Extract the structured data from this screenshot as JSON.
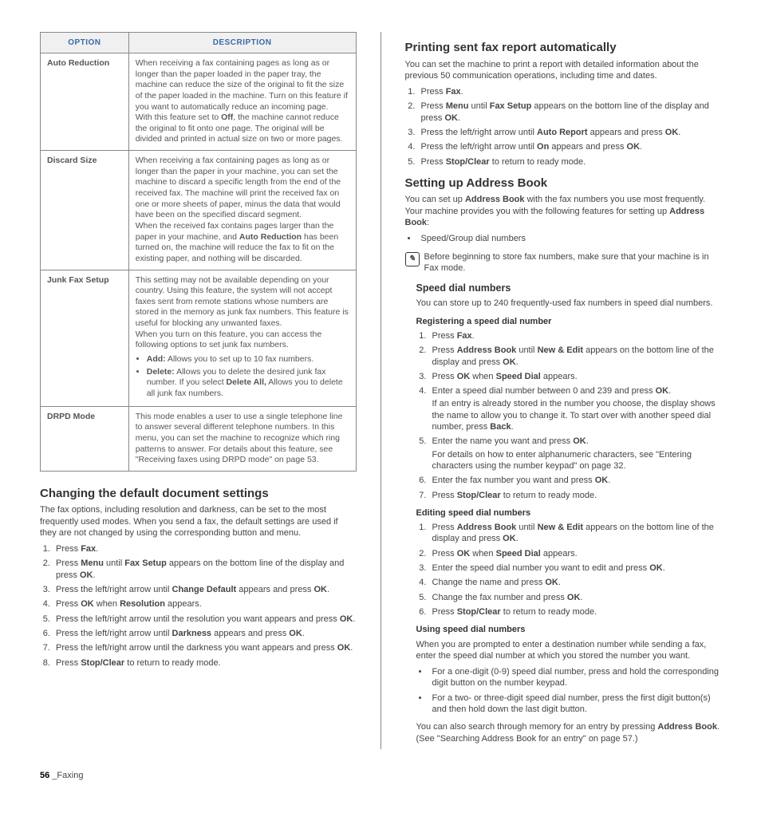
{
  "table": {
    "header_option": "OPTION",
    "header_description": "DESCRIPTION",
    "rows": [
      {
        "name": "Auto Reduction",
        "desc_html": "When receiving a fax containing pages as long as or longer than the paper loaded in the paper tray, the machine can reduce the size of the original to fit the size of the paper loaded in the machine. Turn on this feature if you want to automatically reduce an incoming page.<br>With this feature set to <strong>Off</strong>, the machine cannot reduce the original to fit onto one page. The original will be divided and printed in actual size on two or more pages."
      },
      {
        "name": "Discard Size",
        "desc_html": "When receiving a fax containing pages as long as or longer than the paper in your machine, you can set the machine to discard a specific length from the end of the received fax. The machine will print the received fax on one or more sheets of paper, minus the data that would have been on the specified discard segment.<br>When the received fax contains pages larger than the paper in your machine, and <strong>Auto Reduction</strong> has been turned on, the machine will reduce the fax to fit on the existing paper, and nothing will be discarded."
      },
      {
        "name": "Junk Fax Setup",
        "desc_html": "This setting may not be available depending on your country. Using this feature, the system will not accept faxes sent from remote stations whose numbers are stored in the memory as junk fax numbers. This feature is useful for blocking any unwanted faxes.<br>When you turn on this feature, you can access the following options to set junk fax numbers.<ul><li><strong>Add:</strong> Allows you to set up to 10 fax numbers.</li><li><strong>Delete:</strong> Allows you to delete the desired junk fax number. If you select <strong>Delete All,</strong> Allows you to delete all junk fax numbers.</li></ul>"
      },
      {
        "name": "DRPD Mode",
        "desc_html": "This mode enables a user to use a single telephone line to answer several different telephone numbers. In this menu, you can set the machine to recognize which ring patterns to answer. For details about this feature, see \"Receiving faxes using DRPD mode\" on page 53."
      }
    ]
  },
  "s_changing": {
    "title": "Changing the default document settings",
    "intro": "The fax options, including resolution and darkness, can be set to the most frequently used modes. When you send a fax, the default settings are used if they are not changed by using the corresponding button and menu.",
    "steps": [
      "Press <strong>Fax</strong>.",
      "Press <strong>Menu</strong> until <strong>Fax Setup</strong> appears on the bottom line of the display and press <strong>OK</strong>.",
      "Press the left/right arrow until <strong>Change Default</strong> appears and press <strong>OK</strong>.",
      "Press <strong>OK</strong> when <strong>Resolution</strong> appears.",
      "Press the left/right arrow until the resolution you want appears and press <strong>OK</strong>.",
      "Press the left/right arrow until <strong>Darkness</strong> appears and press <strong>OK</strong>.",
      "Press the left/right arrow until the darkness you want appears and press <strong>OK</strong>.",
      "Press <strong>Stop/Clear</strong> to return to ready mode."
    ]
  },
  "s_printing": {
    "title": "Printing sent fax report automatically",
    "intro": "You can set the machine to print a report with detailed information about the previous 50 communication operations, including time and dates.",
    "steps": [
      "Press <strong>Fax</strong>.",
      "Press <strong>Menu</strong> until <strong>Fax Setup</strong> appears on the bottom line of the display and press <strong>OK</strong>.",
      "Press the left/right arrow until <strong>Auto Report</strong> appears and press <strong>OK</strong>.",
      "Press the left/right arrow until <strong>On</strong> appears and press <strong>OK</strong>.",
      "Press <strong>Stop/Clear</strong> to return to ready mode."
    ]
  },
  "s_address": {
    "title": "Setting up Address Book",
    "intro_html": "You can set up <strong>Address Book</strong> with the fax numbers you use most frequently. Your machine provides you with the following features for setting up <strong>Address Book</strong>:",
    "bullets": [
      "Speed/Group dial numbers"
    ],
    "note": "Before beginning to store fax numbers, make sure that your machine is in Fax mode."
  },
  "s_speed": {
    "title": "Speed dial numbers",
    "intro": "You can store up to 240 frequently-used fax numbers in speed dial numbers."
  },
  "s_register": {
    "title": "Registering a speed dial number",
    "steps": [
      "Press <strong>Fax</strong>.",
      "Press <strong>Address Book</strong> until <strong>New & Edit</strong> appears on the bottom line of the display and press <strong>OK</strong>.",
      "Press <strong>OK</strong> when <strong>Speed Dial</strong> appears.",
      "Enter a speed dial number between 0 and 239 and press <strong>OK</strong>.<span class=\"sub\">If an entry is already stored in the number you choose, the display shows the name to allow you to change it. To start over with another speed dial number, press <strong>Back</strong>.</span>",
      "Enter the name you want and press <strong>OK</strong>.<span class=\"sub\">For details on how to enter alphanumeric characters, see \"Entering characters using the number keypad\" on page 32.</span>",
      "Enter the fax number you want and press <strong>OK</strong>.",
      "Press <strong>Stop/Clear</strong> to return to ready mode."
    ]
  },
  "s_edit": {
    "title": "Editing speed dial numbers",
    "steps": [
      "Press <strong>Address Book</strong> until <strong>New & Edit</strong> appears on the bottom line of the display and press <strong>OK</strong>.",
      "Press <strong>OK</strong> when <strong>Speed Dial</strong> appears.",
      "Enter the speed dial number you want to edit and press <strong>OK</strong>.",
      "Change the name and press <strong>OK</strong>.",
      "Change the fax number and press <strong>OK</strong>.",
      "Press <strong>Stop/Clear</strong> to return to ready mode."
    ]
  },
  "s_using": {
    "title": "Using speed dial numbers",
    "intro": "When you are prompted to enter a destination number while sending a fax, enter the speed dial number at which you stored the number you want.",
    "bullets": [
      "For a one-digit (0-9) speed dial number, press and hold the corresponding digit button on the number keypad.",
      "For a two- or three-digit speed dial number, press the first digit button(s) and then hold down the last digit button."
    ],
    "outro_html": "You can also search through memory for an entry by pressing <strong>Address Book</strong>. (See \"Searching Address Book for an entry\" on page 57.)"
  },
  "footer": {
    "page_num": "56",
    "section": "_Faxing"
  }
}
